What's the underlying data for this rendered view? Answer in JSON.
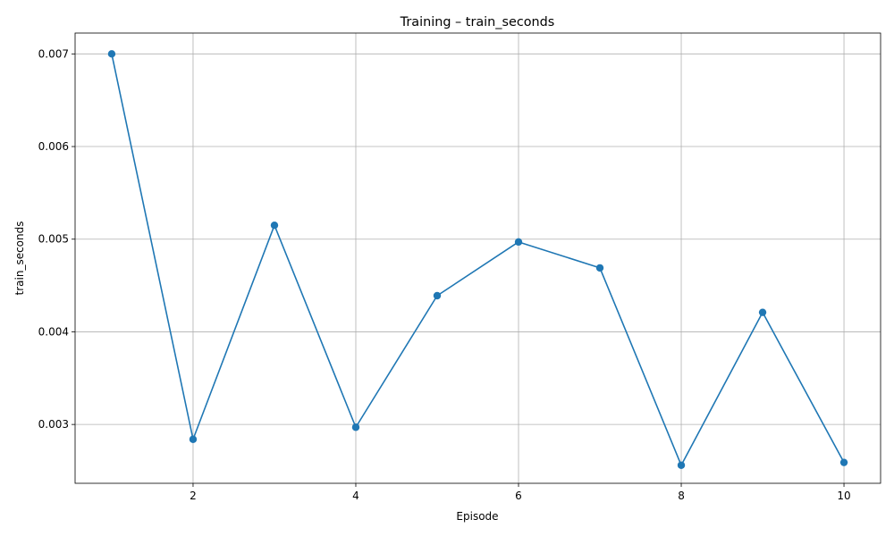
{
  "chart_data": {
    "type": "line",
    "title": "Training – train_seconds",
    "xlabel": "Episode",
    "ylabel": "train_seconds",
    "xlim": [
      0.55,
      10.45
    ],
    "ylim": [
      0.002365,
      0.007225
    ],
    "x_ticks": [
      2,
      4,
      6,
      8,
      10
    ],
    "x_tick_labels": [
      "2",
      "4",
      "6",
      "8",
      "10"
    ],
    "y_ticks": [
      0.003,
      0.004,
      0.005,
      0.006,
      0.007
    ],
    "y_tick_labels": [
      "0.003",
      "0.004",
      "0.005",
      "0.006",
      "0.007"
    ],
    "grid": true,
    "legend": "none",
    "series": [
      {
        "color": "#1f77b4",
        "marker": "circle",
        "x": [
          1,
          2,
          3,
          4,
          5,
          6,
          7,
          8,
          9,
          10
        ],
        "y": [
          0.007,
          0.00284,
          0.00515,
          0.00297,
          0.00439,
          0.00497,
          0.00469,
          0.00256,
          0.00421,
          0.00259
        ]
      }
    ]
  }
}
